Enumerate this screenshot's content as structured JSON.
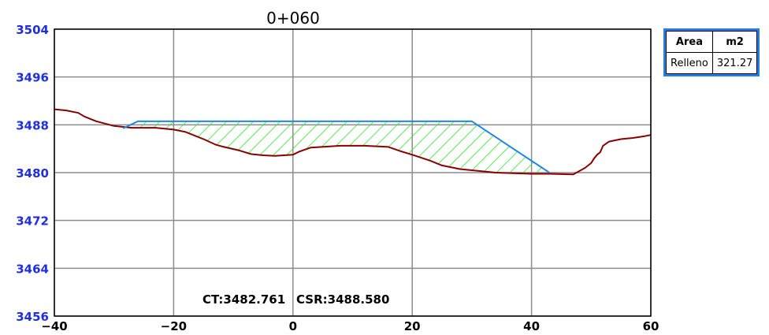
{
  "chart_data": {
    "type": "line",
    "title": "0+060",
    "xlabel": "",
    "ylabel": "",
    "xlim": [
      -40,
      60
    ],
    "ylim": [
      3456,
      3504
    ],
    "x_ticks": [
      "−40",
      "−20",
      "0",
      "20",
      "40",
      "60"
    ],
    "x_tick_values": [
      -40,
      -20,
      0,
      20,
      40,
      60
    ],
    "y_ticks": [
      "3456",
      "3464",
      "3472",
      "3480",
      "3488",
      "3496",
      "3504"
    ],
    "y_tick_values": [
      3456,
      3464,
      3472,
      3480,
      3488,
      3496,
      3504
    ],
    "grid": true,
    "series": [
      {
        "role": "terrain",
        "color": "#8b0000",
        "x": [
          -40,
          -38,
          -36,
          -35,
          -33,
          -30,
          -27,
          -23,
          -20,
          -18,
          -15,
          -13,
          -12,
          -9,
          -7,
          -5,
          -3,
          0,
          1,
          3,
          8,
          12,
          16,
          18,
          20,
          23,
          25,
          28,
          30,
          34,
          37,
          40,
          43,
          47,
          49,
          50,
          50.5,
          51,
          51.5,
          52,
          53,
          55,
          57,
          59,
          60
        ],
        "y": [
          3490.6,
          3490.4,
          3490.0,
          3489.4,
          3488.6,
          3487.8,
          3487.5,
          3487.5,
          3487.2,
          3486.8,
          3485.6,
          3484.7,
          3484.4,
          3483.7,
          3483.1,
          3482.9,
          3482.8,
          3483.0,
          3483.5,
          3484.2,
          3484.5,
          3484.5,
          3484.3,
          3483.6,
          3483.0,
          3482.0,
          3481.2,
          3480.6,
          3480.4,
          3480.0,
          3479.9,
          3479.8,
          3479.8,
          3479.7,
          3480.8,
          3481.6,
          3482.4,
          3483.0,
          3483.4,
          3484.5,
          3485.2,
          3485.6,
          3485.8,
          3486.1,
          3486.3
        ]
      },
      {
        "role": "design",
        "color": "#1e88e5",
        "x": [
          -28.5,
          -26,
          30,
          43
        ],
        "y": [
          3487.4,
          3488.58,
          3488.58,
          3480.0
        ]
      }
    ],
    "fill": {
      "name": "Relleno",
      "hatch_color": "#22ee22",
      "x_range": [
        -26,
        43
      ]
    },
    "annotations": {
      "ct": "CT:3482.761",
      "csr": "CSR:3488.580"
    },
    "area_table": {
      "headers": [
        "Area",
        "m2"
      ],
      "rows": [
        [
          "Relleno",
          "321.27"
        ]
      ]
    }
  }
}
